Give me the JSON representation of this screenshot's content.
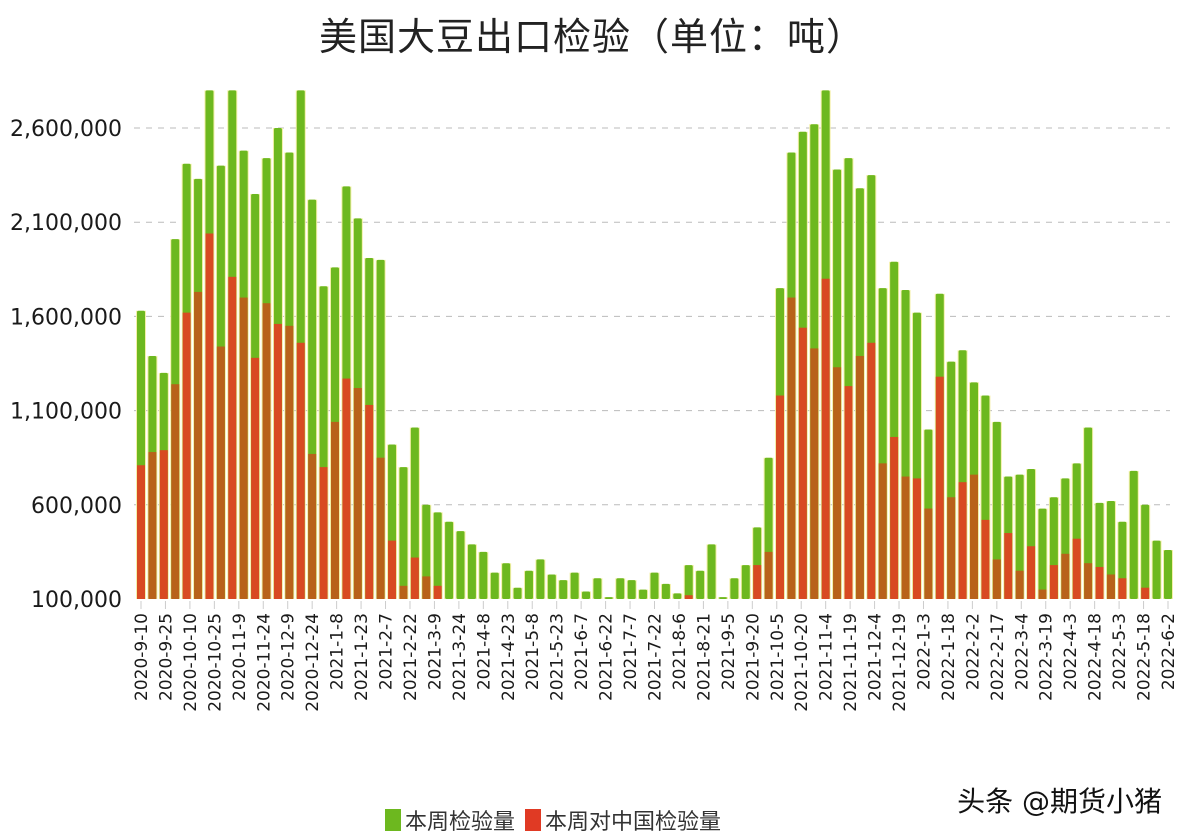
{
  "title": "美国大豆出口检验（单位：吨）",
  "watermark": "头条 @期货小猪",
  "legend": [
    {
      "label": "本周检验量",
      "color": "#6db81f"
    },
    {
      "label": "本周对中国检验量",
      "color": "#e03a24"
    }
  ],
  "colors": {
    "total": "#6db81f",
    "china": "#d84a22",
    "grid": "#bbbbbb",
    "background": "#ffffff"
  },
  "chart_data": {
    "type": "bar",
    "title": "美国大豆出口检验（单位：吨）",
    "xlabel": "",
    "ylabel": "",
    "ylim": [
      100000,
      2800000
    ],
    "yticks": [
      100000,
      600000,
      1100000,
      1600000,
      2100000,
      2600000
    ],
    "ytick_labels": [
      "100,000",
      "600,000",
      "1,100,000",
      "1,600,000",
      "2,100,000",
      "2,600,000"
    ],
    "grid": "horizontal dashed",
    "legend_position": "bottom",
    "x_tick_labels": [
      "2020-9-10",
      "2020-9-25",
      "2020-10-10",
      "2020-10-25",
      "2020-11-9",
      "2020-11-24",
      "2020-12-9",
      "2020-12-24",
      "2021-1-8",
      "2021-1-23",
      "2021-2-7",
      "2021-2-22",
      "2021-3-9",
      "2021-3-24",
      "2021-4-8",
      "2021-4-23",
      "2021-5-8",
      "2021-5-23",
      "2021-6-7",
      "2021-6-22",
      "2021-7-7",
      "2021-7-22",
      "2021-8-6",
      "2021-8-21",
      "2021-9-5",
      "2021-9-20",
      "2021-10-5",
      "2021-10-20",
      "2021-11-4",
      "2021-11-19",
      "2021-12-4",
      "2021-12-19",
      "2022-1-3",
      "2022-1-18",
      "2022-2-2",
      "2022-2-17",
      "2022-3-4",
      "2022-3-19",
      "2022-4-3",
      "2022-4-18",
      "2022-5-3",
      "2022-5-18",
      "2022-6-2"
    ],
    "series": [
      {
        "name": "本周检验量",
        "values": [
          1630000,
          1390000,
          1300000,
          2010000,
          2410000,
          2330000,
          2800000,
          2400000,
          2800000,
          2480000,
          2250000,
          2440000,
          2600000,
          2470000,
          2800000,
          2220000,
          1760000,
          1860000,
          2290000,
          2120000,
          1910000,
          1900000,
          920000,
          800000,
          1010000,
          600000,
          560000,
          510000,
          460000,
          390000,
          350000,
          240000,
          290000,
          160000,
          250000,
          310000,
          230000,
          200000,
          240000,
          140000,
          210000,
          110000,
          210000,
          200000,
          150000,
          240000,
          180000,
          130000,
          280000,
          250000,
          390000,
          110000,
          210000,
          280000,
          480000,
          850000,
          1750000,
          2470000,
          2580000,
          2620000,
          2800000,
          2380000,
          2440000,
          2280000,
          2350000,
          1750000,
          1890000,
          1740000,
          1620000,
          1000000,
          1720000,
          1360000,
          1420000,
          1250000,
          1180000,
          1040000,
          750000,
          760000,
          790000,
          580000,
          640000,
          740000,
          820000,
          1010000,
          610000,
          620000,
          510000,
          780000,
          600000,
          410000,
          360000
        ]
      },
      {
        "name": "本周对中国检验量",
        "values": [
          810000,
          880000,
          890000,
          1240000,
          1620000,
          1730000,
          2040000,
          1440000,
          1810000,
          1700000,
          1380000,
          1670000,
          1560000,
          1550000,
          1460000,
          870000,
          800000,
          1040000,
          1270000,
          1220000,
          1130000,
          850000,
          410000,
          170000,
          320000,
          220000,
          170000,
          0,
          0,
          0,
          0,
          0,
          0,
          0,
          0,
          0,
          0,
          0,
          0,
          0,
          0,
          0,
          0,
          0,
          0,
          0,
          0,
          0,
          120000,
          0,
          0,
          0,
          0,
          0,
          280000,
          350000,
          1180000,
          1700000,
          1540000,
          1430000,
          1800000,
          1330000,
          1230000,
          1390000,
          1460000,
          820000,
          960000,
          750000,
          740000,
          580000,
          1280000,
          640000,
          720000,
          760000,
          520000,
          310000,
          450000,
          250000,
          380000,
          150000,
          280000,
          340000,
          420000,
          290000,
          270000,
          230000,
          210000,
          0,
          160000,
          0,
          0
        ]
      }
    ]
  }
}
